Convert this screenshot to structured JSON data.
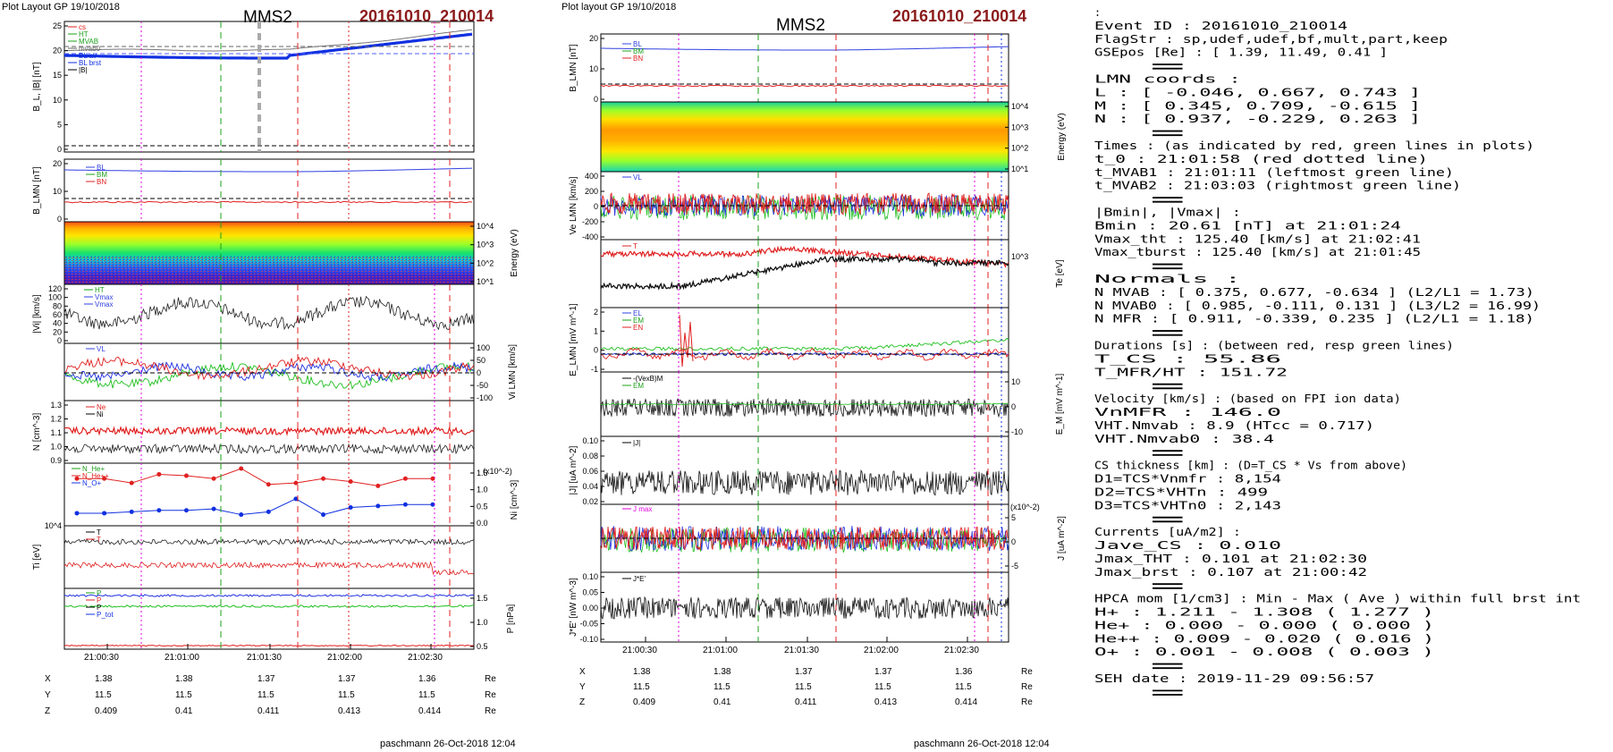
{
  "left": {
    "header": "Plot Layout GP 19/10/2018",
    "title": "MMS2",
    "event": "20161010_210014",
    "footer": "paschmann 26-Oct-2018 12:04",
    "time_ticks": [
      "21:00:30",
      "21:01:00",
      "21:01:30",
      "21:02:00",
      "21:02:30"
    ],
    "coords": {
      "labels": [
        "X",
        "Y",
        "Z"
      ],
      "unit": "Re",
      "rows": [
        [
          "1.38",
          "1.38",
          "1.37",
          "1.37",
          "1.36"
        ],
        [
          "11.5",
          "11.5",
          "11.5",
          "11.5",
          "11.5"
        ],
        [
          "0.409",
          "0.41",
          "0.411",
          "0.413",
          "0.414"
        ]
      ]
    },
    "panels": {
      "b": {
        "ylabel": "B_L, |B| [nT]",
        "ticks": [
          "25",
          "20",
          "15",
          "10",
          "5",
          "0"
        ],
        "legend": [
          "cs",
          "HT",
          "MVAB",
          "mvab0",
          "BL av",
          "BL brst",
          "|B|"
        ]
      },
      "blmn": {
        "ylabel": "B_LMN [nT]",
        "ticks": [
          "20",
          "10",
          "0"
        ],
        "legend": [
          "BL",
          "BM",
          "BN"
        ]
      },
      "espec": {
        "ylabel": "Energy (eV)",
        "ticks": [
          "10^4",
          "10^3",
          "10^2",
          "10^1"
        ]
      },
      "vi": {
        "ylabel": "|Vi| [km/s]",
        "ticks": [
          "120",
          "100",
          "80",
          "60",
          "40",
          "20",
          "0"
        ],
        "legend": [
          "HT",
          "Vmax",
          "Vmax"
        ]
      },
      "vilmn": {
        "ylabel": "Vi LMN [km/s]",
        "ticks": [
          "100",
          "50",
          "0",
          "-50",
          "-100"
        ],
        "legend": [
          "VL"
        ]
      },
      "n": {
        "ylabel": "N [cm^-3]",
        "ticks": [
          "1.3",
          "1.2",
          "1.1",
          "1.0",
          "0.9"
        ],
        "legend": [
          "Ne",
          "Ni"
        ]
      },
      "ni": {
        "ylabel": "Ni [cm^-3]",
        "ticks": [
          "1.5",
          "1.0",
          "0.5",
          "0.0"
        ],
        "scale": "(x10^-2)",
        "legend": [
          "N_He+",
          "N_He++",
          "N_O+"
        ]
      },
      "ti": {
        "ylabel": "Ti [eV]",
        "ticks": [
          "10^4"
        ],
        "legend": [
          "T",
          "T"
        ]
      },
      "p": {
        "ylabel": "P [nPa]",
        "ticks": [
          "1.5",
          "1.0",
          "0.5"
        ],
        "legend": [
          "P",
          "P",
          "P",
          "P_tot"
        ]
      }
    }
  },
  "mid": {
    "header": "Plot layout GP 19/10/2018",
    "title": "MMS2",
    "event": "20161010_210014",
    "footer": "paschmann 26-Oct-2018 12:04",
    "time_ticks": [
      "21:00:30",
      "21:01:00",
      "21:01:30",
      "21:02:00",
      "21:02:30"
    ],
    "coords": {
      "labels": [
        "X",
        "Y",
        "Z"
      ],
      "unit": "Re",
      "rows": [
        [
          "1.38",
          "1.38",
          "1.37",
          "1.37",
          "1.36"
        ],
        [
          "11.5",
          "11.5",
          "11.5",
          "11.5",
          "11.5"
        ],
        [
          "0.409",
          "0.41",
          "0.411",
          "0.413",
          "0.414"
        ]
      ]
    },
    "panels": {
      "blmn": {
        "ylabel": "B_LMN [nT]",
        "ticks": [
          "20",
          "10",
          "0"
        ],
        "legend": [
          "BL",
          "BM",
          "BN"
        ]
      },
      "espec": {
        "ylabel": "Energy (eV)",
        "ticks": [
          "10^4",
          "10^3",
          "10^2",
          "10^1"
        ]
      },
      "ve": {
        "ylabel": "Ve LMN [km/s]",
        "ticks": [
          "400",
          "200",
          "0",
          "-200",
          "-400"
        ],
        "legend": [
          "VL"
        ]
      },
      "te": {
        "ylabel": "Te [eV]",
        "ticks": [
          "10^3"
        ],
        "legend": [
          "T"
        ]
      },
      "e": {
        "ylabel": "E_LMN [mV m^-1]",
        "ticks": [
          "2",
          "1",
          "0",
          "-1"
        ],
        "legend": [
          "EL",
          "EM",
          "EN"
        ]
      },
      "em": {
        "ylabel": "E_M [mV m^-1]",
        "ticks": [
          "10",
          "0",
          "-10"
        ],
        "legend": [
          "-(VexB)M",
          "EM"
        ]
      },
      "j": {
        "ylabel": "|J| [uA m^-2]",
        "ticks": [
          "0.10",
          "0.08",
          "0.06",
          "0.04",
          "0.02"
        ],
        "legend": [
          "|J|"
        ]
      },
      "jlmn": {
        "ylabel": "J [uA m^-2]",
        "ticks": [
          "5",
          "0",
          "-5"
        ],
        "scale": "(x10^-2)",
        "legend": [
          "J max"
        ]
      },
      "je": {
        "ylabel": "J*E' [nW m^-3]",
        "ticks": [
          "0.10",
          "0.05",
          "0.00",
          "-0.05",
          "-0.10"
        ],
        "legend": [
          "J*E'"
        ]
      }
    }
  },
  "info_lines": [
    ":",
    "Event ID             : 20161010_210014",
    "FlagStr              : sp,udef,udef,bf,mult,part,keep",
    "GSEpos [Re]          : [ 1.39, 11.49, 0.41 ]",
    "                     :",
    "LMN coords           :",
    "  L                  : [ -0.046,  0.667,  0.743 ]",
    "  M                  : [  0.345,  0.709, -0.615 ]",
    "  N                  : [  0.937, -0.229,  0.263 ]",
    "                     :",
    "Times                : (as indicated by red, green lines in plots)",
    "  t_0                : 21:01:58  (red dotted line)",
    "  t_MVAB1            : 21:01:11  (leftmost green line)",
    "  t_MVAB2            : 21:03:03  (rightmost green line)",
    "                     :",
    "|Bmin|, |Vmax|       :",
    "  Bmin               : 20.61 [nT]  at 21:01:24",
    "  Vmax_tht           : 125.40 [km/s]  at 21:02:41",
    "  Vmax_tburst        : 125.40 [km/s]  at 21:01:45",
    "                     :",
    "Normals              :",
    "  N MVAB             : [  0.375,  0.677, -0.634 ]   (L2/L1 = 1.73)",
    "  N MVAB0            : [  0.985, -0.111,  0.131 ]   (L3/L2 = 16.99)",
    "  N MFR              : [  0.911, -0.339,  0.235 ]   (L2/L1 = 1.18)",
    "                     :",
    "Durations [s]        : (between red, resp green lines)",
    "  T_CS               : 55.86",
    "  T_MFR/HT           : 151.72",
    "                     :",
    "Velocity [km/s]      : (based on FPI ion data)",
    "  VnMFR              : 146.0",
    "  VHT.Nmvab          : 8.9  (HTcc = 0.717)",
    "  VHT.Nmvab0         : 38.4",
    "                     :",
    "CS thickness [km]    : (D=T_CS * Vs from above)",
    "  D1=TCS*Vnmfr       : 8,154",
    "  D2=TCS*VHTn        : 499",
    "  D3=TCS*VHTn0       : 2,143",
    "                     :",
    "Currents [uA/m2]     :",
    "  Jave_CS            : 0.010",
    "  Jmax_THT           : 0.101  at 21:02:30",
    "  Jmax_brst          : 0.107  at 21:00:42",
    "                     :",
    "HPCA mom [1/cm3]     :   Min   -  Max    (  Ave   )  within full brst int",
    "  H+                 :   1.211 -  1.308  (  1.277 )",
    "  He+                :   0.000 -  0.000  (  0.000 )",
    "  He++               :   0.009 -  0.020  (  0.016 )",
    "  O+                 :   0.001 -  0.008  (  0.003 )",
    "                     :",
    "SEH date             : 2019-11-29 09:56:57",
    "                     :"
  ],
  "chart_data": [
    {
      "type": "line",
      "title": "MMS2 20161010_210014",
      "x": [
        "21:00:30",
        "21:01:00",
        "21:01:30",
        "21:02:00",
        "21:02:30"
      ],
      "ylabel": "B_L, |B| [nT]",
      "ylim": [
        0,
        26
      ],
      "series": [
        {
          "name": "|B|",
          "values": [
            21,
            21,
            20.6,
            22,
            24.5
          ]
        },
        {
          "name": "BL brst",
          "values": [
            19.5,
            19,
            18.8,
            21,
            24
          ]
        }
      ]
    },
    {
      "type": "line",
      "ylabel": "|Vi| [km/s]",
      "ylim": [
        0,
        125
      ],
      "x": [
        "21:00:30",
        "21:01:00",
        "21:01:30",
        "21:02:00",
        "21:02:30"
      ],
      "series": [
        {
          "name": "HT",
          "values": [
            70,
            50,
            60,
            80,
            75
          ]
        }
      ]
    },
    {
      "type": "line",
      "ylabel": "N [cm^-3]",
      "ylim": [
        0.9,
        1.3
      ],
      "x": [
        "21:00:30",
        "21:01:00",
        "21:01:30",
        "21:02:00",
        "21:02:30"
      ],
      "series": [
        {
          "name": "Ne",
          "values": [
            1.15,
            1.17,
            1.16,
            1.16,
            1.14
          ]
        },
        {
          "name": "Ni",
          "values": [
            1.05,
            1.06,
            1.05,
            1.05,
            1.04
          ]
        }
      ]
    },
    {
      "type": "line",
      "ylabel": "Ni [cm^-3] (x10^-2)",
      "ylim": [
        0,
        1.8
      ],
      "x": [
        0,
        1,
        2,
        3,
        4,
        5,
        6,
        7,
        8,
        9,
        10,
        11,
        12,
        13
      ],
      "series": [
        {
          "name": "N_He++",
          "values": [
            1.45,
            1.45,
            1.3,
            1.6,
            1.55,
            1.45,
            1.8,
            1.25,
            1.3,
            1.45,
            1.35,
            1.2,
            1.45,
            1.45
          ]
        },
        {
          "name": "N_O+",
          "values": [
            0.25,
            0.25,
            0.3,
            0.35,
            0.35,
            0.4,
            0.2,
            0.3,
            0.75,
            0.2,
            0.45,
            0.5,
            0.55,
            0.55
          ]
        }
      ]
    },
    {
      "type": "line",
      "ylabel": "Te [eV]",
      "x": [
        "21:00:30",
        "21:01:00",
        "21:01:30",
        "21:02:00",
        "21:02:30"
      ],
      "series": [
        {
          "name": "T",
          "values": [
            300,
            350,
            600,
            750,
            700
          ]
        }
      ]
    }
  ]
}
